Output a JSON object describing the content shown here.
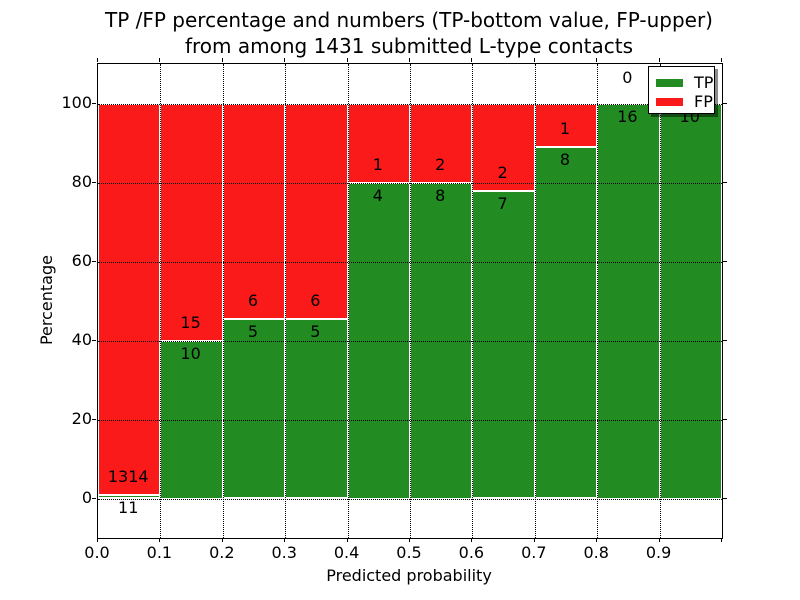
{
  "title": {
    "line1": "TP /FP percentage and numbers (TP-bottom value, FP-upper)",
    "line2": "from among 1431 submitted L-type contacts"
  },
  "axes": {
    "xlabel": "Predicted probability",
    "ylabel": "Percentage",
    "x_tick_labels": [
      "0.0",
      "0.1",
      "0.2",
      "0.3",
      "0.4",
      "0.5",
      "0.6",
      "0.7",
      "0.8",
      "0.9"
    ],
    "y_tick_labels": [
      "0",
      "20",
      "40",
      "60",
      "80",
      "100"
    ],
    "xlim": [
      0,
      1
    ],
    "ylim": [
      -10,
      110
    ]
  },
  "legend": {
    "items": [
      {
        "label": "TP",
        "color": "#228b22"
      },
      {
        "label": "FP",
        "color": "#fb1a1a"
      }
    ]
  },
  "colors": {
    "tp_green": "#228b22",
    "fp_red": "#fb1a1a",
    "grid": "#000000",
    "bar_edge": "#ffffff"
  },
  "chart_data": {
    "type": "bar",
    "stacked": true,
    "normalized": "each bin stacked to 100%",
    "total_contacts": 1431,
    "title": "TP /FP percentage and numbers (TP-bottom value, FP-upper) from among 1431 submitted L-type contacts",
    "xlabel": "Predicted probability",
    "ylabel": "Percentage",
    "xlim": [
      0,
      1
    ],
    "ylim": [
      -10,
      110
    ],
    "grid": true,
    "legend_position": "upper right",
    "bin_width": 0.1,
    "bin_starts": [
      0.0,
      0.1,
      0.2,
      0.3,
      0.4,
      0.5,
      0.6,
      0.7,
      0.8,
      0.9
    ],
    "series": [
      {
        "name": "TP",
        "color": "#228b22",
        "counts": [
          11,
          10,
          5,
          5,
          4,
          8,
          7,
          8,
          16,
          10
        ]
      },
      {
        "name": "FP",
        "color": "#fb1a1a",
        "counts": [
          1314,
          15,
          6,
          6,
          1,
          2,
          2,
          1,
          0,
          0
        ]
      }
    ],
    "tp_percent_by_bin": [
      0.83,
      40.0,
      45.45,
      45.45,
      80.0,
      80.0,
      77.78,
      88.89,
      100.0,
      100.0
    ]
  }
}
